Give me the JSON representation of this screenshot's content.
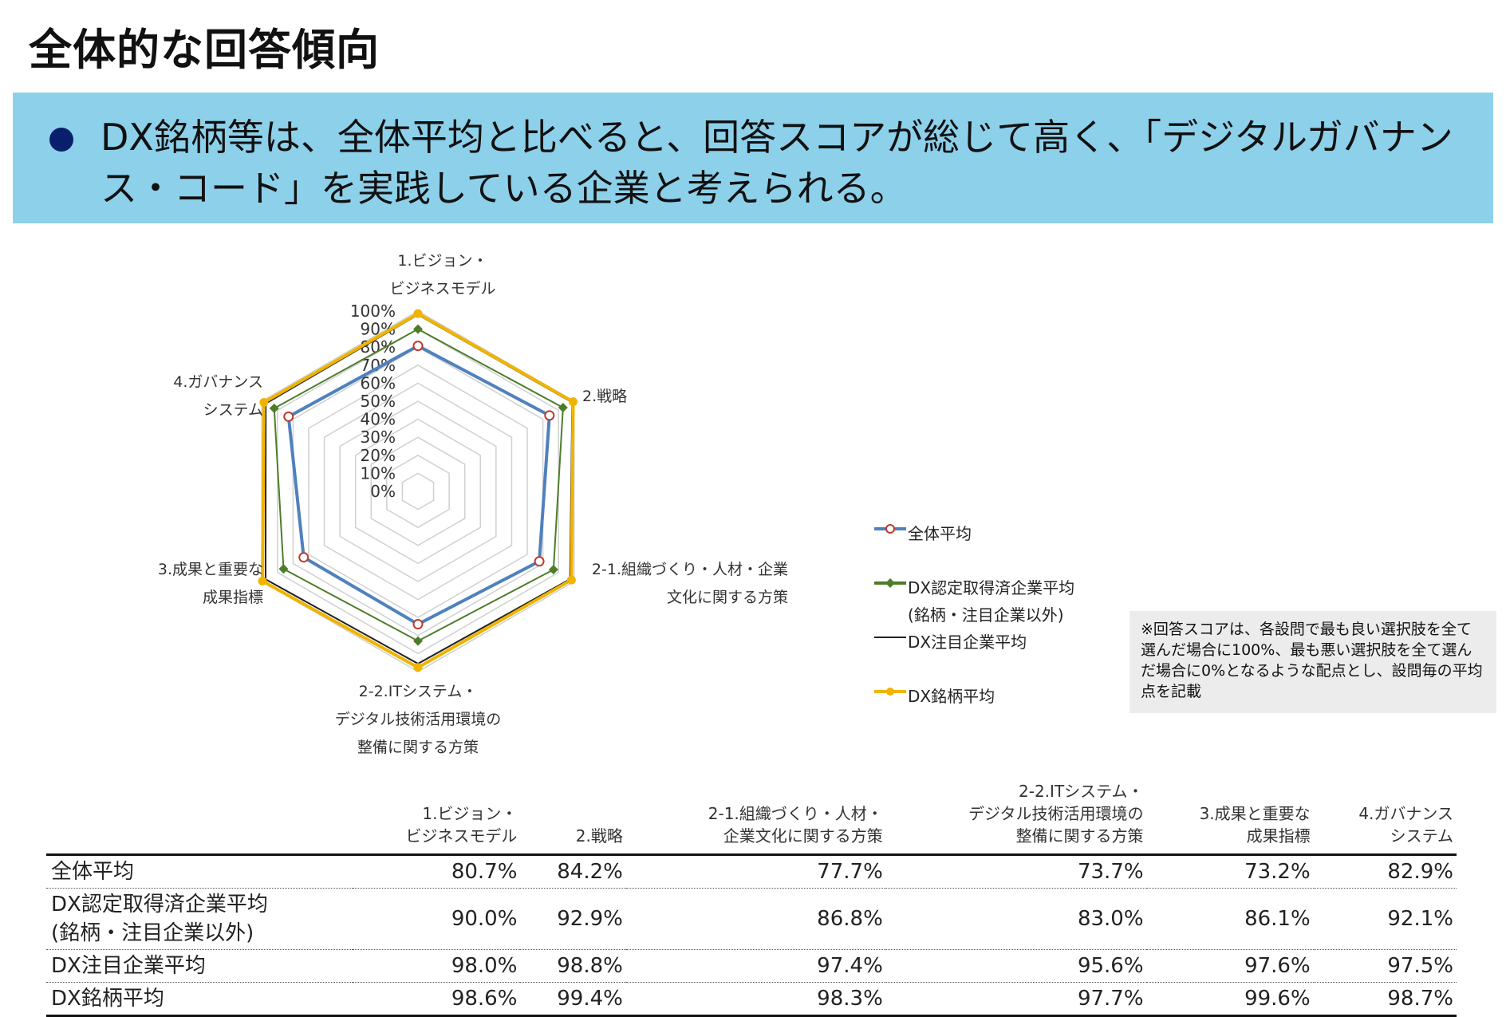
{
  "page_title": "全体的な回答傾向",
  "banner_text": "DX銘柄等は、全体平均と比べると、回答スコアが総じて高く、「デジタルガバナンス・コード」を実践している企業と考えられる。",
  "note": "※回答スコアは、各設問で最も良い選択肢を全て選んだ場合に100%、最も悪い選択肢を全て選んだ場合に0%となるような配点とし、設問毎の平均点を記載",
  "colors": {
    "banner": "#8dd0ea",
    "bullet": "#0a1f6b",
    "note_bg": "#ececec"
  },
  "chart_data": {
    "type": "radar",
    "categories": [
      "1.ビジョン・\nビジネスモデル",
      "2.戦略",
      "2-1.組織づくり・人材・企業\n文化に関する方策",
      "2-2.ITシステム・\nデジタル技術活用環境の\n整備に関する方策",
      "3.成果と重要な\n成果指標",
      "4.ガバナンス\nシステム"
    ],
    "table_headers": [
      "1.ビジョン・\nビジネスモデル",
      "2.戦略",
      "2-1.組織づくり・人材・\n企業文化に関する方策",
      "2-2.ITシステム・\nデジタル技術活用環境の\n整備に関する方策",
      "3.成果と重要な\n成果指標",
      "4.ガバナンス\nシステム"
    ],
    "ticks": [
      "100%",
      "90%",
      "80%",
      "70%",
      "60%",
      "50%",
      "40%",
      "30%",
      "20%",
      "10%",
      "0%"
    ],
    "range": [
      0,
      100
    ],
    "legend_position": "right",
    "series": [
      {
        "name": "全体平均",
        "color": "#4f81bd",
        "marker": "open-circle",
        "values": [
          80.7,
          84.2,
          77.7,
          73.7,
          73.2,
          82.9
        ],
        "labels": [
          "80.7%",
          "84.2%",
          "77.7%",
          "73.7%",
          "73.2%",
          "82.9%"
        ]
      },
      {
        "name": "DX認定取得済企業平均\n(銘柄・注目企業以外)",
        "color": "#4e7d2a",
        "marker": "diamond",
        "values": [
          90.0,
          92.9,
          86.8,
          83.0,
          86.1,
          92.1
        ],
        "labels": [
          "90.0%",
          "92.9%",
          "86.8%",
          "83.0%",
          "86.1%",
          "92.1%"
        ]
      },
      {
        "name": "DX注目企業平均",
        "color": "#222222",
        "marker": "none",
        "values": [
          98.0,
          98.8,
          97.4,
          95.6,
          97.6,
          97.5
        ],
        "labels": [
          "98.0%",
          "98.8%",
          "97.4%",
          "95.6%",
          "97.6%",
          "97.5%"
        ]
      },
      {
        "name": "DX銘柄平均",
        "color": "#f0b400",
        "marker": "dot",
        "values": [
          98.6,
          99.4,
          98.3,
          97.7,
          99.6,
          98.7
        ],
        "labels": [
          "98.6%",
          "99.4%",
          "98.3%",
          "97.7%",
          "99.6%",
          "98.7%"
        ]
      }
    ]
  }
}
